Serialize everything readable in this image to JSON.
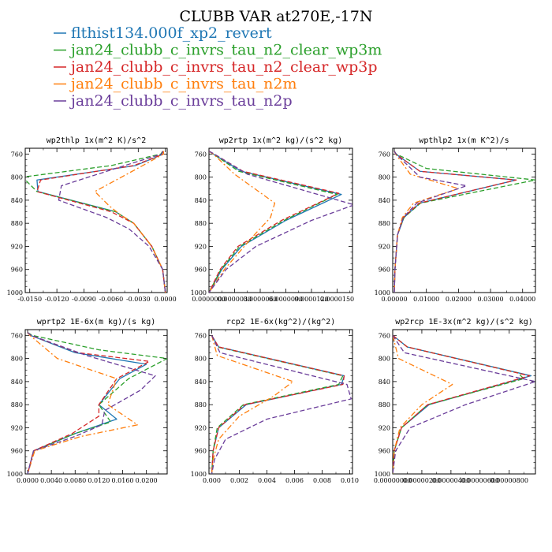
{
  "figure": {
    "title": "CLUBB VAR at270E,-17N"
  },
  "legend": [
    {
      "name": "flthist134.000f_xp2_revert",
      "color": "#1f77b4",
      "dash": "solid"
    },
    {
      "name": "jan24_clubb_c_invrs_tau_n2_clear_wp3m",
      "color": "#2ca02c",
      "dash": "dash"
    },
    {
      "name": "jan24_clubb_c_invrs_tau_n2_clear_wp3p",
      "color": "#d62728",
      "dash": "dash"
    },
    {
      "name": "jan24_clubb_c_invrs_tau_n2m",
      "color": "#ff7f0e",
      "dash": "dashdot"
    },
    {
      "name": "jan24_clubb_c_invrs_tau_n2p",
      "color": "#6a3d9a",
      "dash": "dash"
    }
  ],
  "chart_data": [
    {
      "type": "line",
      "title": "wp2thlp  1x(m^2 K)/s^2",
      "xlim": [
        -0.0155,
        0.0002
      ],
      "ylim": [
        1000,
        750
      ],
      "xticks": [
        -0.015,
        -0.012,
        -0.009,
        -0.006,
        -0.003,
        0.0
      ],
      "xticklabels": [
        "-0.0150",
        "-0.0120",
        "-0.0090",
        "-0.0060",
        "-0.0030",
        "0.0000"
      ],
      "yticks": [
        760,
        800,
        840,
        880,
        920,
        960,
        1000
      ],
      "yticklabels": [
        "760",
        "800",
        "840",
        "880",
        "920",
        "960",
        "1000"
      ],
      "series": [
        {
          "y": [
            755,
            760,
            780,
            805,
            825,
            860,
            880,
            920,
            960,
            1000
          ],
          "x": [
            -0.0003,
            -0.0002,
            -0.0033,
            -0.0142,
            -0.0141,
            -0.0055,
            -0.0035,
            -0.0015,
            -0.0003,
            0.0
          ]
        },
        {
          "y": [
            755,
            760,
            780,
            800,
            825,
            860,
            880,
            920,
            960,
            1000
          ],
          "x": [
            -0.0003,
            -0.0005,
            -0.006,
            -0.0158,
            -0.0142,
            -0.0055,
            -0.0035,
            -0.0015,
            -0.0003,
            0.0
          ]
        },
        {
          "y": [
            755,
            760,
            780,
            805,
            825,
            860,
            880,
            920,
            960,
            1000
          ],
          "x": [
            -0.0003,
            -0.0002,
            -0.0035,
            -0.0138,
            -0.0142,
            -0.006,
            -0.0035,
            -0.0015,
            -0.0003,
            0.0
          ]
        },
        {
          "y": [
            755,
            760,
            780,
            825,
            850,
            865,
            880,
            920,
            960,
            1000
          ],
          "x": [
            -0.0002,
            -0.0002,
            -0.0025,
            -0.0078,
            -0.0062,
            -0.005,
            -0.0035,
            -0.0015,
            -0.0003,
            0.0
          ]
        },
        {
          "y": [
            755,
            760,
            780,
            815,
            840,
            870,
            890,
            920,
            960,
            1000
          ],
          "x": [
            -0.0003,
            -0.0004,
            -0.0045,
            -0.0115,
            -0.0118,
            -0.0065,
            -0.004,
            -0.0018,
            -0.0003,
            0.0
          ]
        }
      ]
    },
    {
      "type": "line",
      "title": "wp2rtp  1x(m^2 kg)/(s^2 kg)",
      "xlim": [
        0.0,
        1.68e-05
      ],
      "ylim": [
        1000,
        750
      ],
      "xticks": [
        0.0,
        3e-06,
        6e-06,
        9e-06,
        1.2e-05,
        1.5e-05
      ],
      "xticklabels": [
        "0.0000000",
        "0.0000030",
        "0.0000060",
        "0.0000090",
        "0.0000120",
        "0.0000150"
      ],
      "yticks": [
        760,
        800,
        840,
        880,
        920,
        960,
        1000
      ],
      "yticklabels": [
        "760",
        "800",
        "840",
        "880",
        "920",
        "960",
        "1000"
      ],
      "series": [
        {
          "y": [
            755,
            760,
            790,
            830,
            875,
            920,
            960,
            1000
          ],
          "x": [
            0.0,
            5e-07,
            3.8e-06,
            1.55e-05,
            9e-06,
            3.8e-06,
            1.5e-06,
            0.0
          ],
          "y_note": ""
        },
        {
          "y": [
            755,
            760,
            790,
            830,
            875,
            920,
            960,
            1000
          ],
          "x": [
            0.0,
            5e-07,
            3.5e-06,
            1.5e-05,
            8.8e-06,
            3.6e-06,
            1.4e-06,
            0.0
          ]
        },
        {
          "y": [
            755,
            760,
            790,
            828,
            875,
            920,
            960,
            1000
          ],
          "x": [
            0.0,
            6e-07,
            4e-06,
            1.52e-05,
            8.5e-06,
            3.4e-06,
            1.3e-06,
            0.0
          ]
        },
        {
          "y": [
            755,
            760,
            795,
            845,
            870,
            905,
            960,
            1000
          ],
          "x": [
            0.0,
            5e-07,
            3e-06,
            7.7e-06,
            7.2e-06,
            5e-06,
            1.8e-06,
            0.0
          ]
        },
        {
          "y": [
            755,
            760,
            795,
            848,
            875,
            920,
            960,
            1000
          ],
          "x": [
            0.0,
            6e-07,
            4.5e-06,
            1.7e-05,
            1.2e-05,
            5.5e-06,
            2e-06,
            0.0
          ]
        }
      ]
    },
    {
      "type": "line",
      "title": "wpthlp2  1x(m K^2)/s",
      "xlim": [
        -0.0005,
        0.044
      ],
      "ylim": [
        1000,
        750
      ],
      "xticks": [
        0.0,
        0.01,
        0.02,
        0.03,
        0.04
      ],
      "xticklabels": [
        "0.00000",
        "0.01000",
        "0.02000",
        "0.03000",
        "0.04000"
      ],
      "yticks": [
        760,
        800,
        840,
        880,
        920,
        960,
        1000
      ],
      "yticklabels": [
        "760",
        "800",
        "840",
        "880",
        "920",
        "960",
        "1000"
      ],
      "series": [
        {
          "y": [
            755,
            760,
            790,
            805,
            845,
            870,
            900,
            960,
            1000
          ],
          "x": [
            0.0,
            0.0005,
            0.008,
            0.038,
            0.008,
            0.003,
            0.001,
            0.0002,
            0.0
          ]
        },
        {
          "y": [
            755,
            760,
            785,
            805,
            845,
            870,
            900,
            960,
            1000
          ],
          "x": [
            0.0,
            0.0006,
            0.01,
            0.044,
            0.0082,
            0.003,
            0.001,
            0.0002,
            0.0
          ]
        },
        {
          "y": [
            755,
            760,
            790,
            805,
            845,
            870,
            900,
            960,
            1000
          ],
          "x": [
            0.0,
            0.0005,
            0.008,
            0.038,
            0.0078,
            0.0028,
            0.001,
            0.0002,
            0.0
          ]
        },
        {
          "y": [
            755,
            760,
            795,
            820,
            845,
            870,
            900,
            960,
            1000
          ],
          "x": [
            0.0,
            0.0004,
            0.005,
            0.02,
            0.006,
            0.0025,
            0.001,
            0.0002,
            0.0
          ]
        },
        {
          "y": [
            755,
            760,
            800,
            815,
            845,
            870,
            900,
            960,
            1000
          ],
          "x": [
            0.0,
            0.0005,
            0.008,
            0.0225,
            0.007,
            0.0028,
            0.001,
            0.0002,
            0.0
          ]
        }
      ]
    },
    {
      "type": "line",
      "title": "wprtp2  1E-6x(m kg)/(s kg)",
      "xlim": [
        -0.0004,
        0.0235
      ],
      "ylim": [
        1000,
        750
      ],
      "xticks": [
        0.0,
        0.004,
        0.008,
        0.012,
        0.016,
        0.02
      ],
      "xticklabels": [
        "0.0000",
        "0.0040",
        "0.0080",
        "0.0120",
        "0.0160",
        "0.0200"
      ],
      "yticks": [
        760,
        800,
        840,
        880,
        920,
        960,
        1000
      ],
      "yticklabels": [
        "760",
        "800",
        "840",
        "880",
        "920",
        "960",
        "1000"
      ],
      "series": [
        {
          "y": [
            755,
            760,
            790,
            810,
            835,
            880,
            905,
            930,
            960,
            1000
          ],
          "x": [
            0.0,
            0.0005,
            0.008,
            0.02,
            0.0155,
            0.012,
            0.015,
            0.008,
            0.001,
            0.0
          ]
        },
        {
          "y": [
            755,
            760,
            785,
            800,
            835,
            880,
            910,
            930,
            960,
            1000
          ],
          "x": [
            0.0,
            0.0008,
            0.012,
            0.0235,
            0.017,
            0.012,
            0.014,
            0.008,
            0.001,
            0.0
          ]
        },
        {
          "y": [
            755,
            760,
            790,
            805,
            835,
            880,
            900,
            930,
            960,
            1000
          ],
          "x": [
            0.0,
            0.0005,
            0.0085,
            0.0205,
            0.015,
            0.012,
            0.012,
            0.0075,
            0.001,
            0.0
          ]
        },
        {
          "y": [
            755,
            760,
            800,
            835,
            880,
            915,
            935,
            960,
            1000
          ],
          "x": [
            0.0,
            0.0004,
            0.005,
            0.015,
            0.0135,
            0.0185,
            0.009,
            0.0012,
            0.0
          ]
        },
        {
          "y": [
            755,
            760,
            795,
            830,
            855,
            890,
            915,
            935,
            960,
            1000
          ],
          "x": [
            0.0,
            0.0006,
            0.01,
            0.0215,
            0.019,
            0.013,
            0.0125,
            0.008,
            0.001,
            0.0
          ]
        }
      ]
    },
    {
      "type": "line",
      "title": "rcp2  1E-6x(kg^2)/(kg^2)",
      "xlim": [
        -0.0002,
        0.0102
      ],
      "ylim": [
        1000,
        750
      ],
      "xticks": [
        0.0,
        0.002,
        0.004,
        0.006,
        0.008,
        0.01
      ],
      "xticklabels": [
        "0.000",
        "0.002",
        "0.004",
        "0.006",
        "0.008",
        "0.010"
      ],
      "yticks": [
        760,
        800,
        840,
        880,
        920,
        960,
        1000
      ],
      "yticklabels": [
        "760",
        "800",
        "840",
        "880",
        "920",
        "960",
        "1000"
      ],
      "series": [
        {
          "y": [
            760,
            780,
            830,
            845,
            880,
            920,
            960,
            1000
          ],
          "x": [
            0.0,
            0.0005,
            0.0096,
            0.0094,
            0.0025,
            0.0005,
            0.0001,
            0.0
          ]
        },
        {
          "y": [
            760,
            780,
            830,
            845,
            880,
            920,
            960,
            1000
          ],
          "x": [
            0.0,
            0.0004,
            0.0095,
            0.0092,
            0.0023,
            0.0004,
            0.0001,
            0.0
          ]
        },
        {
          "y": [
            760,
            780,
            830,
            845,
            880,
            920,
            960,
            1000
          ],
          "x": [
            0.0,
            0.0005,
            0.0096,
            0.0095,
            0.0024,
            0.0005,
            0.0001,
            0.0
          ]
        },
        {
          "y": [
            760,
            795,
            840,
            865,
            900,
            940,
            975,
            1000
          ],
          "x": [
            0.0,
            0.0004,
            0.0059,
            0.0045,
            0.002,
            0.0005,
            0.0001,
            0.0
          ]
        },
        {
          "y": [
            760,
            790,
            845,
            870,
            905,
            940,
            975,
            1000
          ],
          "x": [
            0.0,
            0.0006,
            0.0098,
            0.0101,
            0.004,
            0.001,
            0.0002,
            0.0
          ]
        }
      ]
    },
    {
      "type": "line",
      "title": "wp2rcp  1E-3x(m^2 kg)/(s^2 kg)",
      "xlim": [
        0.0,
        9.8e-06
      ],
      "ylim": [
        1000,
        750
      ],
      "xticks": [
        0.0,
        2e-06,
        4e-06,
        6e-06,
        8e-06
      ],
      "xticklabels": [
        "0.00000000",
        "0.00000200",
        "0.00000400",
        "0.00000600",
        "0.00000800"
      ],
      "yticks": [
        760,
        800,
        840,
        880,
        920,
        960,
        1000
      ],
      "yticklabels": [
        "760",
        "800",
        "840",
        "880",
        "920",
        "960",
        "1000"
      ],
      "series": [
        {
          "y": [
            760,
            780,
            830,
            880,
            920,
            960,
            1000
          ],
          "x": [
            0.0,
            1e-06,
            9.5e-06,
            2.5e-06,
            6e-07,
            1e-07,
            0.0
          ]
        },
        {
          "y": [
            760,
            780,
            825,
            835,
            880,
            920,
            960,
            1000
          ],
          "x": [
            0.0,
            1e-06,
            8.6e-06,
            9e-06,
            2.4e-06,
            6e-07,
            1e-07,
            0.0
          ]
        },
        {
          "y": [
            760,
            780,
            830,
            880,
            920,
            960,
            1000
          ],
          "x": [
            0.0,
            1e-06,
            9.4e-06,
            2.4e-06,
            6e-07,
            1e-07,
            0.0
          ]
        },
        {
          "y": [
            760,
            800,
            845,
            880,
            920,
            960,
            1000
          ],
          "x": [
            0.0,
            4e-07,
            4.1e-06,
            2e-06,
            5e-07,
            1e-07,
            0.0
          ]
        },
        {
          "y": [
            760,
            790,
            840,
            880,
            920,
            960,
            1000
          ],
          "x": [
            0.0,
            8e-07,
            9.8e-06,
            5e-06,
            1.2e-06,
            2e-07,
            0.0
          ]
        }
      ]
    }
  ]
}
